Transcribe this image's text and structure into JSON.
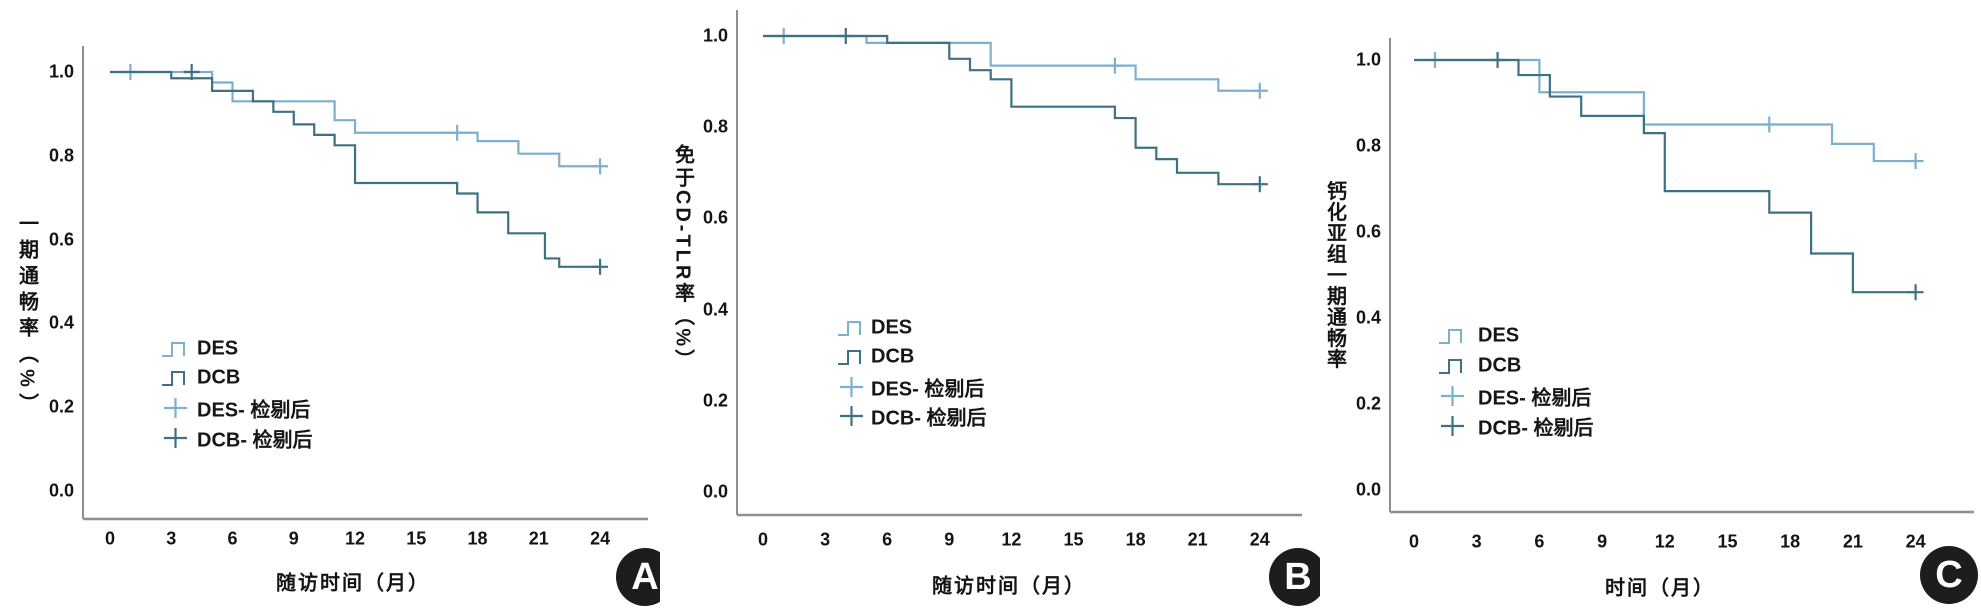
{
  "figure": {
    "background": "#ffffff"
  },
  "colors": {
    "des": "#7fafce",
    "dcb": "#3e7183",
    "axis": "#8f8f8f",
    "text": "#141414",
    "badge_bg": "#1d1d1d",
    "badge_fg": "#ffffff"
  },
  "chart_data": [
    {
      "panel": "A",
      "badge": "A",
      "type": "line",
      "subtype": "kaplan_meier_step",
      "title": "",
      "xlabel": "随访时间（月）",
      "ylabel": "一期通畅率（%）",
      "xlim": [
        0,
        24
      ],
      "ylim": [
        0.0,
        1.05
      ],
      "xticks": [
        0,
        3,
        6,
        9,
        12,
        15,
        18,
        21,
        24
      ],
      "yticks": [
        1.0,
        0.8,
        0.6,
        0.4,
        0.2,
        0.0
      ],
      "grid": false,
      "legend_position": "inside-lower-left",
      "x_end": 24,
      "legend": [
        {
          "label": "DES",
          "marker": "step",
          "series": "DES"
        },
        {
          "label": "DCB",
          "marker": "step",
          "series": "DCB"
        },
        {
          "label": "DES- 检剔后",
          "marker": "plus",
          "series": "DES"
        },
        {
          "label": "DCB- 检剔后",
          "marker": "plus",
          "series": "DCB"
        }
      ],
      "series": [
        {
          "name": "DES",
          "color": "des",
          "steps": [
            [
              0,
              1.0
            ],
            [
              5,
              0.975
            ],
            [
              6,
              0.93
            ],
            [
              11,
              0.885
            ],
            [
              12,
              0.855
            ],
            [
              18,
              0.835
            ],
            [
              20,
              0.805
            ],
            [
              22,
              0.775
            ]
          ],
          "censors": [
            [
              1,
              1.0
            ],
            [
              17,
              0.855
            ],
            [
              24,
              0.775
            ]
          ]
        },
        {
          "name": "DCB",
          "color": "dcb",
          "steps": [
            [
              0,
              1.0
            ],
            [
              3,
              0.985
            ],
            [
              5,
              0.955
            ],
            [
              7,
              0.93
            ],
            [
              8,
              0.905
            ],
            [
              9,
              0.875
            ],
            [
              10,
              0.85
            ],
            [
              11,
              0.825
            ],
            [
              12,
              0.735
            ],
            [
              17,
              0.71
            ],
            [
              18,
              0.665
            ],
            [
              19.5,
              0.615
            ],
            [
              21.3,
              0.555
            ],
            [
              22,
              0.535
            ]
          ],
          "censors": [
            [
              4,
              1.0
            ],
            [
              24,
              0.535
            ]
          ]
        }
      ]
    },
    {
      "panel": "B",
      "badge": "B",
      "type": "line",
      "subtype": "kaplan_meier_step",
      "title": "",
      "xlabel": "随访时间（月）",
      "ylabel": "免于CD-TLR率（%）",
      "xlim": [
        0,
        24
      ],
      "ylim": [
        0.0,
        1.05
      ],
      "xticks": [
        0,
        3,
        6,
        9,
        12,
        15,
        18,
        21,
        24
      ],
      "yticks": [
        1.0,
        0.8,
        0.6,
        0.4,
        0.2,
        0.0
      ],
      "grid": false,
      "legend_position": "inside-lower-left",
      "x_end": 24,
      "legend": [
        {
          "label": "DES",
          "marker": "step",
          "series": "DES"
        },
        {
          "label": "DCB",
          "marker": "step",
          "series": "DCB"
        },
        {
          "label": "DES- 检剔后",
          "marker": "plus",
          "series": "DES"
        },
        {
          "label": "DCB- 检剔后",
          "marker": "plus",
          "series": "DCB"
        }
      ],
      "series": [
        {
          "name": "DES",
          "color": "des",
          "steps": [
            [
              0,
              1.0
            ],
            [
              5,
              0.985
            ],
            [
              11,
              0.935
            ],
            [
              18,
              0.905
            ],
            [
              22,
              0.88
            ]
          ],
          "censors": [
            [
              1,
              1.0
            ],
            [
              17,
              0.935
            ],
            [
              24,
              0.88
            ]
          ]
        },
        {
          "name": "DCB",
          "color": "dcb",
          "steps": [
            [
              0,
              1.0
            ],
            [
              6,
              0.985
            ],
            [
              9,
              0.95
            ],
            [
              10,
              0.925
            ],
            [
              11,
              0.905
            ],
            [
              12,
              0.845
            ],
            [
              17,
              0.82
            ],
            [
              18,
              0.755
            ],
            [
              19,
              0.73
            ],
            [
              20,
              0.7
            ],
            [
              22,
              0.675
            ]
          ],
          "censors": [
            [
              4,
              1.0
            ],
            [
              24,
              0.675
            ]
          ]
        }
      ]
    },
    {
      "panel": "C",
      "badge": "C",
      "type": "line",
      "subtype": "kaplan_meier_step",
      "title": "",
      "xlabel": "时间（月）",
      "ylabel": "钙化亚组一期通畅率",
      "xlim": [
        0,
        24
      ],
      "ylim": [
        0.0,
        1.05
      ],
      "xticks": [
        0,
        3,
        6,
        9,
        12,
        15,
        18,
        21,
        24
      ],
      "yticks": [
        1.0,
        0.8,
        0.6,
        0.4,
        0.2,
        0.0
      ],
      "grid": false,
      "legend_position": "inside-lower-left",
      "x_end": 24,
      "legend": [
        {
          "label": "DES",
          "marker": "step",
          "series": "DES"
        },
        {
          "label": "DCB",
          "marker": "step",
          "series": "DCB"
        },
        {
          "label": "DES- 检剔后",
          "marker": "plus",
          "series": "DES"
        },
        {
          "label": "DCB- 检剔后",
          "marker": "plus",
          "series": "DCB"
        }
      ],
      "series": [
        {
          "name": "DES",
          "color": "des",
          "steps": [
            [
              0,
              1.0
            ],
            [
              6,
              0.925
            ],
            [
              11,
              0.85
            ],
            [
              20,
              0.805
            ],
            [
              22,
              0.765
            ]
          ],
          "censors": [
            [
              1,
              1.0
            ],
            [
              17,
              0.85
            ],
            [
              24,
              0.765
            ]
          ]
        },
        {
          "name": "DCB",
          "color": "dcb",
          "steps": [
            [
              0,
              1.0
            ],
            [
              5,
              0.965
            ],
            [
              6.5,
              0.915
            ],
            [
              8,
              0.87
            ],
            [
              11,
              0.83
            ],
            [
              12,
              0.695
            ],
            [
              17,
              0.645
            ],
            [
              19,
              0.55
            ],
            [
              21,
              0.46
            ]
          ],
          "censors": [
            [
              4,
              1.0
            ],
            [
              24,
              0.46
            ]
          ]
        }
      ]
    }
  ]
}
